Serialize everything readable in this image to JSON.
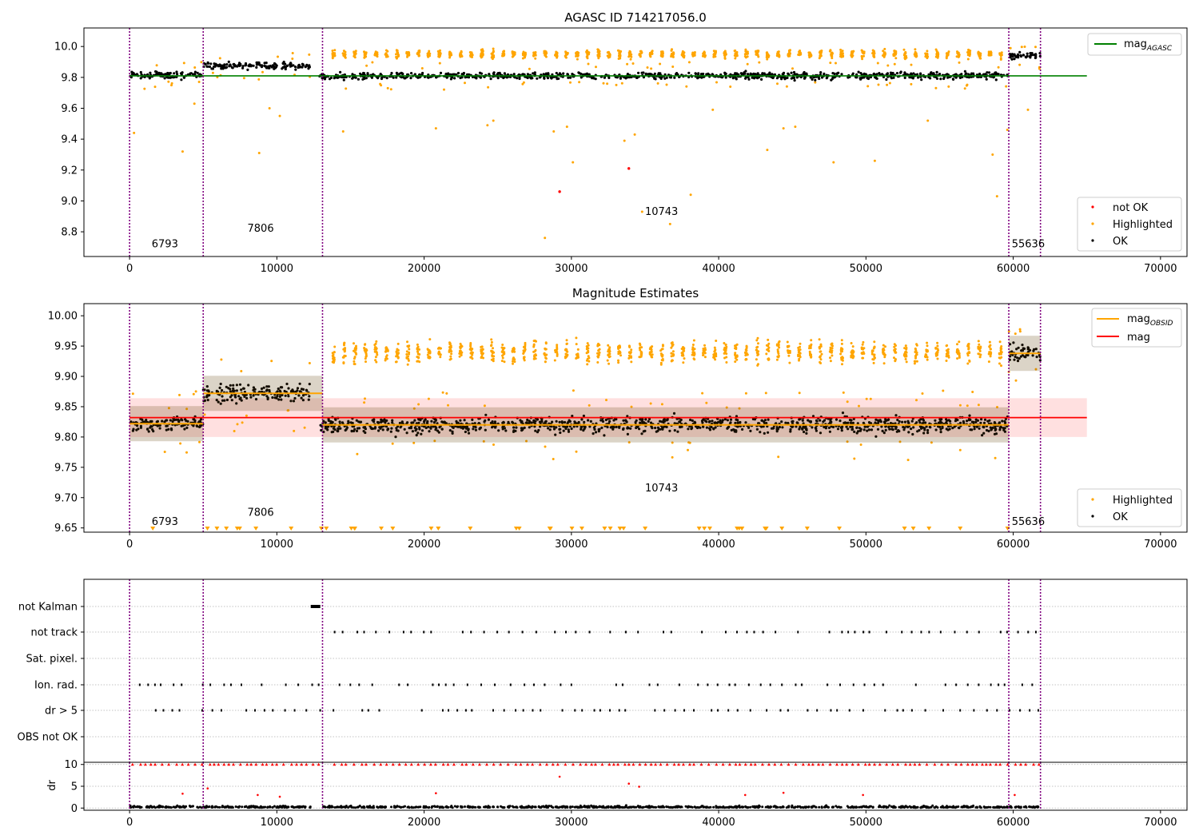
{
  "chart_data": [
    {
      "type": "scatter",
      "title": "AGASC ID 714217056.0",
      "xlim": [
        -3100,
        71800
      ],
      "ylim": [
        8.64,
        10.12
      ],
      "xticks": [
        0,
        10000,
        20000,
        30000,
        40000,
        50000,
        60000,
        70000
      ],
      "yticks": [
        8.8,
        9.0,
        9.2,
        9.4,
        9.6,
        9.8,
        10.0
      ],
      "xticklabels": [
        "0",
        "10000",
        "20000",
        "30000",
        "40000",
        "50000",
        "60000",
        "70000"
      ],
      "yticklabels": [
        "8.8",
        "9.0",
        "9.2",
        "9.4",
        "9.6",
        "9.8",
        "10.0"
      ],
      "grid": false,
      "obsid_boundaries": [
        0,
        5000,
        13100,
        59700,
        61850
      ],
      "obsid_labels": [
        {
          "text": "6793",
          "x": 1500,
          "y": 8.7
        },
        {
          "text": "7806",
          "x": 8000,
          "y": 8.8
        },
        {
          "text": "10743",
          "x": 35000,
          "y": 8.91
        },
        {
          "text": "55636",
          "x": 59900,
          "y": 8.7
        }
      ],
      "clusters": [
        {
          "x0": 0,
          "x1": 5000,
          "center": 9.815,
          "spread": 0.02
        },
        {
          "x0": 5000,
          "x1": 12300,
          "center": 9.875,
          "spread": 0.02
        },
        {
          "x0": 12900,
          "x1": 59700,
          "center": 9.81,
          "spread": 0.02
        },
        {
          "x0": 59700,
          "x1": 61850,
          "center": 9.94,
          "spread": 0.02
        }
      ],
      "highlighted_band": {
        "x0": 13500,
        "x1": 59500,
        "center": 9.95,
        "spread": 0.025
      },
      "outliers_highlighted": [
        [
          300,
          9.44
        ],
        [
          3600,
          9.32
        ],
        [
          4400,
          9.63
        ],
        [
          8800,
          9.31
        ],
        [
          9500,
          9.6
        ],
        [
          10200,
          9.55
        ],
        [
          14500,
          9.45
        ],
        [
          20800,
          9.47
        ],
        [
          24300,
          9.49
        ],
        [
          24700,
          9.52
        ],
        [
          28200,
          8.76
        ],
        [
          28800,
          9.45
        ],
        [
          29700,
          9.48
        ],
        [
          30100,
          9.25
        ],
        [
          33600,
          9.39
        ],
        [
          34300,
          9.43
        ],
        [
          34800,
          8.93
        ],
        [
          36700,
          8.85
        ],
        [
          38100,
          9.04
        ],
        [
          39600,
          9.59
        ],
        [
          43300,
          9.33
        ],
        [
          44400,
          9.47
        ],
        [
          45200,
          9.48
        ],
        [
          47800,
          9.25
        ],
        [
          50600,
          9.26
        ],
        [
          54200,
          9.52
        ],
        [
          58600,
          9.3
        ],
        [
          58900,
          9.03
        ],
        [
          59600,
          9.46
        ],
        [
          61000,
          9.59
        ]
      ],
      "not_ok_points": [
        [
          29200,
          9.06
        ],
        [
          33900,
          9.21
        ]
      ],
      "lines": [
        {
          "name": "mag_AGASC",
          "y": 9.81,
          "x0": 0,
          "x1": 65000,
          "color": "#008000"
        }
      ],
      "legend_top": {
        "placement": "top-right",
        "entries": [
          {
            "label_main": "mag",
            "label_sub": "AGASC",
            "color": "#008000",
            "kind": "line"
          }
        ]
      },
      "legend_bottom": {
        "placement": "lower-right",
        "entries": [
          {
            "label": "not OK",
            "color": "#ff0000",
            "kind": "dot"
          },
          {
            "label": "Highlighted",
            "color": "#ffa500",
            "kind": "dot"
          },
          {
            "label": "OK",
            "color": "#000000",
            "kind": "dot"
          }
        ]
      }
    },
    {
      "type": "scatter",
      "title": "Magnitude Estimates",
      "xlim": [
        -3100,
        71800
      ],
      "ylim": [
        9.643,
        10.02
      ],
      "xticks": [
        0,
        10000,
        20000,
        30000,
        40000,
        50000,
        60000,
        70000
      ],
      "yticks": [
        9.65,
        9.7,
        9.75,
        9.8,
        9.85,
        9.9,
        9.95,
        10.0
      ],
      "xticklabels": [
        "0",
        "10000",
        "20000",
        "30000",
        "40000",
        "50000",
        "60000",
        "70000"
      ],
      "yticklabels": [
        "9.65",
        "9.70",
        "9.75",
        "9.80",
        "9.85",
        "9.90",
        "9.95",
        "10.00"
      ],
      "grid": false,
      "obsid_boundaries": [
        0,
        5000,
        13100,
        59700,
        61850
      ],
      "obsid_labels": [
        {
          "text": "6793",
          "x": 1500,
          "y": 9.655
        },
        {
          "text": "7806",
          "x": 8000,
          "y": 9.67
        },
        {
          "text": "10743",
          "x": 35000,
          "y": 9.71
        },
        {
          "text": "55636",
          "x": 59900,
          "y": 9.655
        }
      ],
      "clusters": [
        {
          "x0": 0,
          "x1": 5000,
          "center": 9.822,
          "spread": 0.012
        },
        {
          "x0": 5000,
          "x1": 12300,
          "center": 9.872,
          "spread": 0.014
        },
        {
          "x0": 12900,
          "x1": 59700,
          "center": 9.82,
          "spread": 0.013
        },
        {
          "x0": 59700,
          "x1": 61850,
          "center": 9.938,
          "spread": 0.013
        }
      ],
      "highlighted_band": {
        "x0": 13500,
        "x1": 59500,
        "center": 9.94,
        "spread": 0.017
      },
      "band": {
        "y0": 9.8,
        "y1": 9.864,
        "x0": 0,
        "x1": 65000,
        "color": "#ff0000",
        "opacity": 0.12
      },
      "lines": [
        {
          "name": "mag",
          "y": 9.832,
          "x0": 0,
          "x1": 65000,
          "color": "#ff0000"
        }
      ],
      "obsid_mag_segments": [
        {
          "x0": 0,
          "x1": 5000,
          "y": 9.822
        },
        {
          "x0": 5000,
          "x1": 13100,
          "y": 9.872
        },
        {
          "x0": 13100,
          "x1": 59700,
          "y": 9.82
        },
        {
          "x0": 59700,
          "x1": 61850,
          "y": 9.938
        }
      ],
      "legend_top": {
        "placement": "top-right",
        "entries": [
          {
            "label_main": "mag",
            "label_sub": "OBSID",
            "color": "#ffa500",
            "kind": "line"
          },
          {
            "label": "mag",
            "color": "#ff0000",
            "kind": "line"
          }
        ]
      },
      "legend_bottom": {
        "placement": "lower-right",
        "entries": [
          {
            "label": "Highlighted",
            "color": "#ffa500",
            "kind": "dot"
          },
          {
            "label": "OK",
            "color": "#000000",
            "kind": "dot"
          }
        ]
      }
    },
    {
      "type": "scatter",
      "title": "",
      "xlim": [
        -3100,
        71800
      ],
      "categories": [
        "not Kalman",
        "not track",
        "Sat. pixel.",
        "Ion. rad.",
        "dr > 5",
        "OBS not OK"
      ],
      "grid": true,
      "obsid_boundaries": [
        0,
        5000,
        13100,
        59700,
        61850
      ],
      "flag_rows": [
        {
          "name": "not Kalman",
          "ranges": [
            [
              12300,
              12950
            ]
          ]
        },
        {
          "name": "not track",
          "ranges": [
            [
              13500,
              61800
            ]
          ]
        },
        {
          "name": "Sat. pixel.",
          "ranges": []
        },
        {
          "name": "Ion. rad.",
          "ranges": [
            [
              200,
              61800
            ]
          ]
        },
        {
          "name": "dr > 5",
          "ranges": [
            [
              200,
              61800
            ]
          ]
        },
        {
          "name": "OBS not OK",
          "ranges": []
        }
      ]
    },
    {
      "type": "scatter",
      "title": "",
      "ylabel": "dr",
      "xlim": [
        -3100,
        71800
      ],
      "ylim": [
        -0.5,
        10.5
      ],
      "xticks": [
        0,
        10000,
        20000,
        30000,
        40000,
        50000,
        60000,
        70000
      ],
      "yticks": [
        0,
        5,
        10
      ],
      "xticklabels": [
        "0",
        "10000",
        "20000",
        "30000",
        "40000",
        "50000",
        "60000",
        "70000"
      ],
      "yticklabels": [
        "0",
        "5",
        "10"
      ],
      "grid": true,
      "obsid_boundaries": [
        0,
        5000,
        13100,
        59700,
        61850
      ],
      "clipped_value": 10,
      "dr_outliers": [
        [
          3600,
          3.3
        ],
        [
          5300,
          4.5
        ],
        [
          8700,
          3.0
        ],
        [
          10200,
          2.6
        ],
        [
          20800,
          3.4
        ],
        [
          29200,
          7.2
        ],
        [
          33900,
          5.6
        ],
        [
          34600,
          4.9
        ],
        [
          41800,
          3.0
        ],
        [
          44400,
          3.5
        ],
        [
          49800,
          3.0
        ],
        [
          60100,
          3.0
        ]
      ]
    }
  ]
}
